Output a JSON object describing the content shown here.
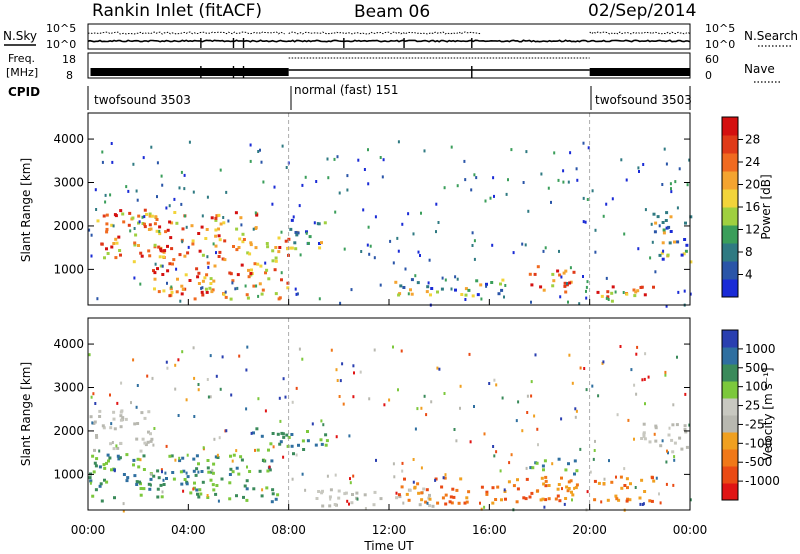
{
  "header": {
    "station": "Rankin Inlet (fitACF)",
    "beam": "Beam 06",
    "date": "02/Sep/2014"
  },
  "noise_panel": {
    "left_label": "N.Sky",
    "left_ticks": [
      "10^5",
      "10^0"
    ],
    "right_label": "N.Search",
    "right_ticks": [
      "10^5",
      "10^0"
    ]
  },
  "freq_panel": {
    "left_label_top": "Freq.",
    "left_label_bottom": "[MHz]",
    "left_ticks": [
      "18",
      "8"
    ],
    "right_label": "Nave",
    "right_ticks": [
      "60",
      "0"
    ]
  },
  "cpid": {
    "label": "CPID",
    "segments": [
      {
        "start_hour": 0,
        "end_hour": 8,
        "name": "twofsound 3503"
      },
      {
        "start_hour": 8,
        "end_hour": 20,
        "name": "normal (fast) 151"
      },
      {
        "start_hour": 20,
        "end_hour": 24,
        "name": "twofsound 3503"
      }
    ]
  },
  "chart_data": [
    {
      "type": "heatmap",
      "title": "",
      "parameter": "Power",
      "xlabel": "",
      "ylabel": "Slant Range [km]",
      "xlim": [
        0,
        24
      ],
      "ylim": [
        180,
        4600
      ],
      "yticks": [
        "1000",
        "2000",
        "3000",
        "4000"
      ],
      "colorbar": {
        "label": "Power [dB]",
        "ticks": [
          "4",
          "8",
          "12",
          "16",
          "20",
          "24",
          "28"
        ],
        "colors": [
          "#1a2bd6",
          "#2a55a8",
          "#2f7a82",
          "#3a9e5a",
          "#9fd040",
          "#f2d43a",
          "#f4a430",
          "#f06a20",
          "#e03a18",
          "#d41010"
        ]
      },
      "echo_regions": [
        {
          "t": [
            0.0,
            2.5
          ],
          "range": [
            1200,
            2400
          ],
          "level": "high"
        },
        {
          "t": [
            2.5,
            6.8
          ],
          "range": [
            350,
            2400
          ],
          "level": "high"
        },
        {
          "t": [
            6.8,
            8.0
          ],
          "range": [
            350,
            1800
          ],
          "level": "high"
        },
        {
          "t": [
            8.0,
            9.5
          ],
          "range": [
            1500,
            2200
          ],
          "level": "medium"
        },
        {
          "t": [
            12.0,
            16.5
          ],
          "range": [
            400,
            800
          ],
          "level": "medium"
        },
        {
          "t": [
            17.5,
            19.5
          ],
          "range": [
            500,
            1100
          ],
          "level": "high"
        },
        {
          "t": [
            20.0,
            22.5
          ],
          "range": [
            300,
            700
          ],
          "level": "high"
        },
        {
          "t": [
            22.5,
            24.0
          ],
          "range": [
            1200,
            2400
          ],
          "level": "medium"
        }
      ]
    },
    {
      "type": "heatmap",
      "title": "",
      "parameter": "Velocity",
      "xlabel": "Time UT",
      "ylabel": "Slant Range [km]",
      "xlim": [
        0,
        24
      ],
      "ylim": [
        180,
        4600
      ],
      "xticks": [
        "00:00",
        "04:00",
        "08:00",
        "12:00",
        "16:00",
        "20:00",
        "00:00"
      ],
      "yticks": [
        "1000",
        "2000",
        "3000",
        "4000"
      ],
      "colorbar": {
        "label": "Velocity [m s⁻¹]",
        "ticks": [
          "1000",
          "500",
          "100",
          "25",
          "-25",
          "-100",
          "-500",
          "-1000"
        ],
        "colors": [
          "#2a3fb0",
          "#2f6fa0",
          "#3a8a5a",
          "#7cc83c",
          "#c8c8c0",
          "#b8b8b0",
          "#f0a020",
          "#f07818",
          "#ea4a14",
          "#e01414"
        ]
      },
      "echo_regions": [
        {
          "t": [
            0.0,
            2.5
          ],
          "range": [
            1500,
            2500
          ],
          "level": "ground"
        },
        {
          "t": [
            0.0,
            7.5
          ],
          "range": [
            400,
            1500
          ],
          "level": "toward"
        },
        {
          "t": [
            6.5,
            9.5
          ],
          "range": [
            1500,
            2100
          ],
          "level": "toward"
        },
        {
          "t": [
            9.0,
            14.0
          ],
          "range": [
            300,
            700
          ],
          "level": "ground"
        },
        {
          "t": [
            12.0,
            19.5
          ],
          "range": [
            350,
            1000
          ],
          "level": "away"
        },
        {
          "t": [
            17.5,
            19.5
          ],
          "range": [
            1000,
            1400
          ],
          "level": "toward"
        },
        {
          "t": [
            20.0,
            22.5
          ],
          "range": [
            350,
            1000
          ],
          "level": "away"
        },
        {
          "t": [
            22.0,
            24.0
          ],
          "range": [
            1500,
            2200
          ],
          "level": "ground"
        }
      ]
    }
  ]
}
